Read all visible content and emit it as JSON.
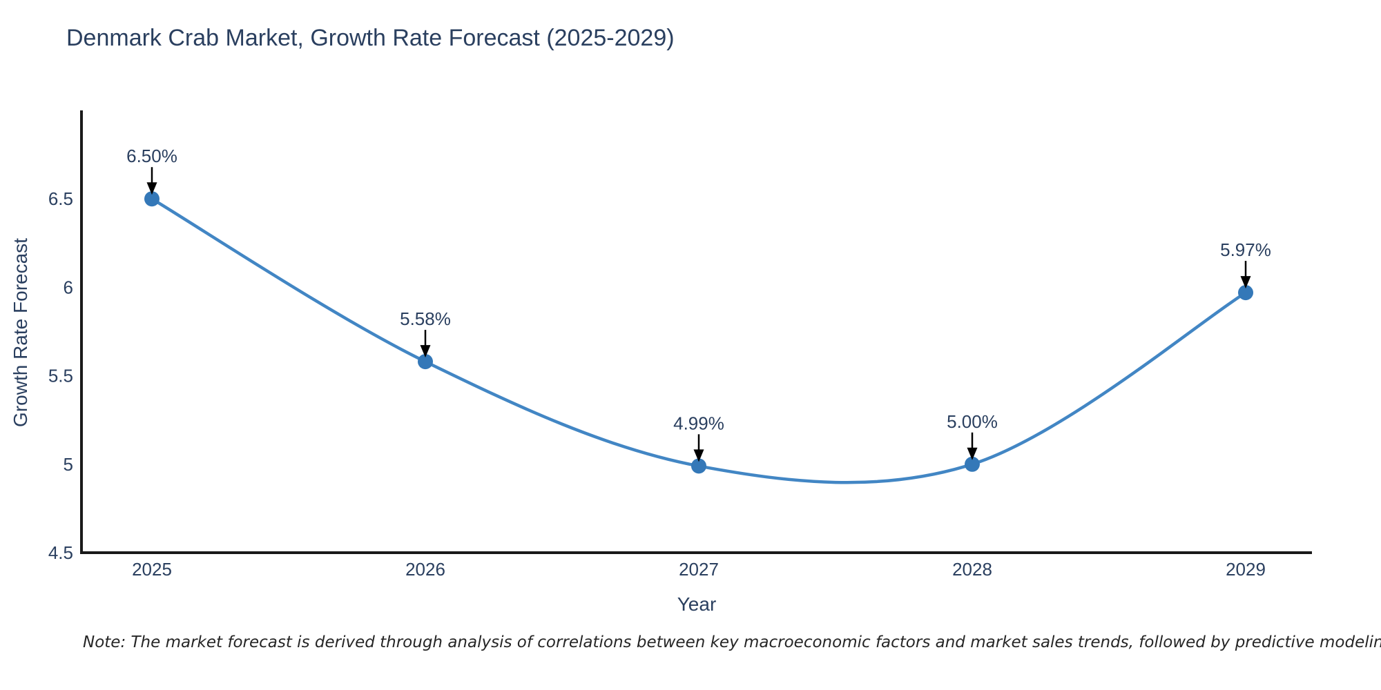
{
  "chart_data": {
    "type": "line",
    "title": "Denmark Crab Market, Growth Rate Forecast (2025-2029)",
    "xlabel": "Year",
    "ylabel": "Growth Rate Forecast",
    "categories": [
      "2025",
      "2026",
      "2027",
      "2028",
      "2029"
    ],
    "series": [
      {
        "name": "Growth Rate Forecast",
        "values": [
          6.5,
          5.58,
          4.99,
          5.0,
          5.97
        ]
      }
    ],
    "point_labels": [
      "6.50%",
      "5.58%",
      "4.99%",
      "5.00%",
      "5.97%"
    ],
    "ylim": [
      4.5,
      7.0
    ],
    "yticks": [
      6.5,
      6.0,
      5.5,
      5.0,
      4.5
    ],
    "ytick_labels": [
      "6.5",
      "6",
      "5.5",
      "5",
      "4.5"
    ],
    "line_shape": "spline",
    "markers": true,
    "grid": false,
    "legend": "none",
    "colors": {
      "line": "#4286c4",
      "marker": "#3478b8",
      "axis": "#1a1a1a",
      "text": "#2a3f5f",
      "arrow": "#000000",
      "note_text": "#262626",
      "background": "#ffffff"
    },
    "note": "Note: The market forecast is derived through analysis of correlations between key macroeconomic factors and market sales trends, followed by predictive modeling to project future sales"
  }
}
